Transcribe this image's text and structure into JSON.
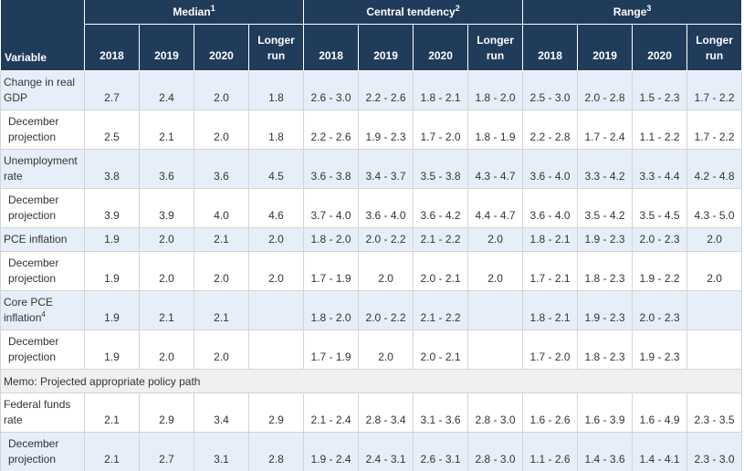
{
  "table": {
    "header": {
      "variable": "Variable",
      "groups": [
        {
          "label": "Median",
          "note": "1",
          "columns": [
            "2018",
            "2019",
            "2020",
            "Longer run"
          ]
        },
        {
          "label": "Central tendency",
          "note": "2",
          "columns": [
            "2018",
            "2019",
            "2020",
            "Longer run"
          ]
        },
        {
          "label": "Range",
          "note": "3",
          "columns": [
            "2018",
            "2019",
            "2020",
            "Longer run"
          ]
        }
      ]
    },
    "sections": [
      {
        "variables": [
          {
            "label": "Change in real GDP",
            "values": [
              "2.7",
              "2.4",
              "2.0",
              "1.8",
              "2.6 - 3.0",
              "2.2 - 2.6",
              "1.8 - 2.1",
              "1.8 - 2.0",
              "2.5 - 3.0",
              "2.0 - 2.8",
              "1.5 - 2.3",
              "1.7 - 2.2"
            ],
            "december": {
              "label": "December projection",
              "values": [
                "2.5",
                "2.1",
                "2.0",
                "1.8",
                "2.2 - 2.6",
                "1.9 - 2.3",
                "1.7 - 2.0",
                "1.8 - 1.9",
                "2.2 - 2.8",
                "1.7 - 2.4",
                "1.1 - 2.2",
                "1.7 - 2.2"
              ]
            }
          },
          {
            "label": "Unemployment rate",
            "values": [
              "3.8",
              "3.6",
              "3.6",
              "4.5",
              "3.6 - 3.8",
              "3.4 - 3.7",
              "3.5 - 3.8",
              "4.3 - 4.7",
              "3.6 - 4.0",
              "3.3 - 4.2",
              "3.3 - 4.4",
              "4.2 - 4.8"
            ],
            "december": {
              "label": "December projection",
              "values": [
                "3.9",
                "3.9",
                "4.0",
                "4.6",
                "3.7 - 4.0",
                "3.6 - 4.0",
                "3.6 - 4.2",
                "4.4 - 4.7",
                "3.6 - 4.0",
                "3.5 - 4.2",
                "3.5 - 4.5",
                "4.3 - 5.0"
              ]
            }
          },
          {
            "label": "PCE inflation",
            "values": [
              "1.9",
              "2.0",
              "2.1",
              "2.0",
              "1.8 - 2.0",
              "2.0 - 2.2",
              "2.1 - 2.2",
              "2.0",
              "1.8 - 2.1",
              "1.9 - 2.3",
              "2.0 - 2.3",
              "2.0"
            ],
            "december": {
              "label": "December projection",
              "values": [
                "1.9",
                "2.0",
                "2.0",
                "2.0",
                "1.7 - 1.9",
                "2.0",
                "2.0 - 2.1",
                "2.0",
                "1.7 - 2.1",
                "1.8 - 2.3",
                "1.9 - 2.2",
                "2.0"
              ]
            }
          },
          {
            "label": "Core PCE inflation",
            "note": "4",
            "values": [
              "1.9",
              "2.1",
              "2.1",
              null,
              "1.8 - 2.0",
              "2.0 - 2.2",
              "2.1 - 2.2",
              null,
              "1.8 - 2.1",
              "1.9 - 2.3",
              "2.0 - 2.3",
              null
            ],
            "december": {
              "label": "December projection",
              "values": [
                "1.9",
                "2.0",
                "2.0",
                null,
                "1.7 - 1.9",
                "2.0",
                "2.0 - 2.1",
                null,
                "1.7 - 2.0",
                "1.8 - 2.3",
                "1.9 - 2.3",
                null
              ]
            }
          }
        ]
      },
      {
        "memo": "Memo: Projected appropriate policy path",
        "variables": [
          {
            "label": "Federal funds rate",
            "values": [
              "2.1",
              "2.9",
              "3.4",
              "2.9",
              "2.1 - 2.4",
              "2.8 - 3.4",
              "3.1 - 3.6",
              "2.8 - 3.0",
              "1.6 - 2.6",
              "1.6 - 3.9",
              "1.6 - 4.9",
              "2.3 - 3.5"
            ],
            "december": {
              "label": "December projection",
              "values": [
                "2.1",
                "2.7",
                "3.1",
                "2.8",
                "1.9 - 2.4",
                "2.4 - 3.1",
                "2.6 - 3.1",
                "2.8 - 3.0",
                "1.1 - 2.6",
                "1.4 - 3.6",
                "1.4 - 4.1",
                "2.3 - 3.0"
              ]
            }
          }
        ]
      }
    ]
  }
}
